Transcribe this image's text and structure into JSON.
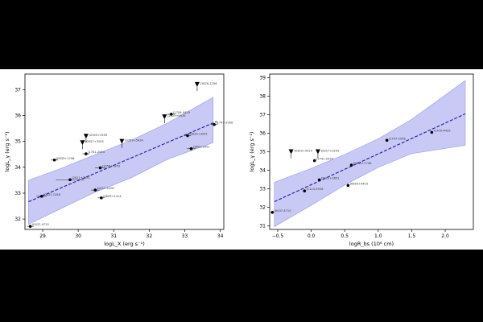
{
  "chart_data": [
    {
      "type": "scatter",
      "xlabel": "logL_X (erg s⁻¹)",
      "ylabel": "logL_γ (erg s⁻¹)",
      "xlim": [
        28.5,
        34.1
      ],
      "ylim": [
        31.6,
        37.6
      ],
      "xticks": [
        29,
        30,
        31,
        32,
        33,
        34
      ],
      "yticks": [
        32,
        33,
        34,
        35,
        36,
        37
      ],
      "fit_line": [
        [
          28.6,
          32.67
        ],
        [
          33.9,
          35.77
        ]
      ],
      "band_upper": [
        [
          28.6,
          33.5
        ],
        [
          29.5,
          33.95
        ],
        [
          30.5,
          34.5
        ],
        [
          31.5,
          35.05
        ],
        [
          32.5,
          35.7
        ],
        [
          33.8,
          36.7
        ]
      ],
      "band_lower": [
        [
          28.6,
          31.8
        ],
        [
          29.5,
          32.4
        ],
        [
          30.5,
          33.05
        ],
        [
          31.5,
          33.6
        ],
        [
          32.5,
          34.3
        ],
        [
          33.8,
          34.95
        ]
      ],
      "points": [
        {
          "label": "J0437-4715",
          "x": 28.65,
          "y": 31.72,
          "xerr": 0.1
        },
        {
          "label": "J0437-1358",
          "x": 28.97,
          "y": 32.88,
          "xerr": 0.15
        },
        {
          "label": "J0633+1746",
          "x": 29.33,
          "y": 34.28,
          "xerr": 0.1
        },
        {
          "label": "J2021+3651",
          "x": 29.77,
          "y": 33.52,
          "xerr": 0.4
        },
        {
          "label": "J1741-2054",
          "x": 30.22,
          "y": 34.52,
          "xerr": 0.1
        },
        {
          "label": "J1057-5226",
          "x": 30.48,
          "y": 33.12,
          "xerr": 0.12
        },
        {
          "label": "J0659+1414",
          "x": 30.65,
          "y": 32.82,
          "xerr": 0.1
        },
        {
          "label": "J1952+3252",
          "x": 30.62,
          "y": 33.98,
          "xerr": 0.15
        },
        {
          "label": "J1709-4429",
          "x": 32.62,
          "y": 36.05,
          "xerr": 0.12
        },
        {
          "label": "J0633+3251",
          "x": 33.08,
          "y": 35.22,
          "xerr": 0.1
        },
        {
          "label": "J1801-2451",
          "x": 33.18,
          "y": 34.72,
          "xerr": 0.12
        },
        {
          "label": "J1747-2958",
          "x": 33.83,
          "y": 35.65,
          "xerr": 0.1
        }
      ],
      "upper_limits": [
        {
          "label": "J1826-1256",
          "x": 33.35,
          "y": 37.2
        },
        {
          "label": "J2055+2539",
          "x": 30.22,
          "y": 35.2
        },
        {
          "label": "J0357+3205",
          "x": 30.12,
          "y": 34.95
        },
        {
          "label": "J0359+5414",
          "x": 31.23,
          "y": 35.0
        },
        {
          "label": "J2225+6535",
          "x": 32.43,
          "y": 35.95
        }
      ]
    },
    {
      "type": "scatter",
      "xlabel": "logR_bs (10⁶ cm)",
      "ylabel": "logL_γ (erg s⁻¹)",
      "xlim": [
        -0.62,
        2.42
      ],
      "ylim": [
        30.8,
        39.2
      ],
      "xticks": [
        -0.5,
        0.0,
        0.5,
        1.0,
        1.5,
        2.0
      ],
      "xtick_labels": [
        "−0.5",
        "0.0",
        "0.5",
        "1.0",
        "1.5",
        "2.0"
      ],
      "yticks": [
        31,
        32,
        33,
        34,
        35,
        36,
        37,
        38,
        39
      ],
      "fit_line": [
        [
          -0.55,
          32.3
        ],
        [
          2.3,
          37.05
        ]
      ],
      "band_upper": [
        [
          -0.55,
          33.35
        ],
        [
          0.0,
          34.1
        ],
        [
          0.5,
          34.85
        ],
        [
          1.0,
          35.7
        ],
        [
          1.5,
          36.75
        ],
        [
          2.3,
          38.85
        ]
      ],
      "band_lower": [
        [
          -0.55,
          30.95
        ],
        [
          0.0,
          32.1
        ],
        [
          0.5,
          33.2
        ],
        [
          1.0,
          34.15
        ],
        [
          1.5,
          34.9
        ],
        [
          2.3,
          35.35
        ]
      ],
      "points": [
        {
          "label": "J0437-4715",
          "x": -0.58,
          "y": 31.72
        },
        {
          "label": "J1124-5916",
          "x": -0.1,
          "y": 32.88
        },
        {
          "label": "J1741-2054",
          "x": 0.05,
          "y": 34.52
        },
        {
          "label": "J2021+3651",
          "x": 0.12,
          "y": 33.48
        },
        {
          "label": "J0659+4415",
          "x": 0.55,
          "y": 33.18
        },
        {
          "label": "J0633+1746",
          "x": 0.6,
          "y": 34.28
        },
        {
          "label": "J1747-2958",
          "x": 1.13,
          "y": 35.62
        },
        {
          "label": "J1709-4429",
          "x": 1.8,
          "y": 36.05
        }
      ],
      "upper_limits": [
        {
          "label": "J0359+5414",
          "x": -0.3,
          "y": 35.0
        },
        {
          "label": "J0357+3205",
          "x": 0.1,
          "y": 35.0
        }
      ]
    }
  ]
}
